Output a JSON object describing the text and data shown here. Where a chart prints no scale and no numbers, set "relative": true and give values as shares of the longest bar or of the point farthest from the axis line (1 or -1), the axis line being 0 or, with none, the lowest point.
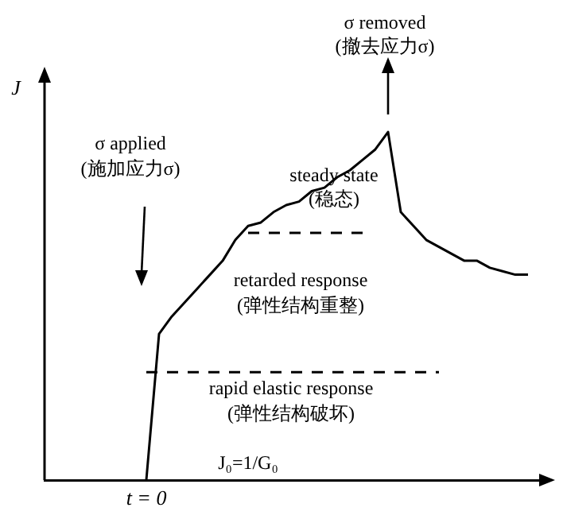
{
  "chart_data": {
    "type": "line",
    "relative": true,
    "ylabel": "J",
    "marker": "none",
    "grid": false,
    "legend": false,
    "categories": [
      null,
      null,
      null,
      null,
      null,
      null,
      null,
      null,
      null,
      null,
      null,
      null,
      null,
      null,
      null,
      null,
      null,
      null,
      null,
      null,
      null,
      null,
      null,
      null,
      null,
      null,
      null,
      null,
      null,
      null,
      null,
      null,
      null,
      null,
      null,
      null,
      null,
      null,
      null,
      null
    ],
    "series": [
      {
        "color": "#000000",
        "line_style": "solid",
        "values": [
          null,
          null,
          null,
          null,
          null,
          null,
          null,
          null,
          0,
          0.42,
          0.47,
          0.51,
          0.55,
          0.59,
          0.63,
          0.69,
          0.73,
          0.74,
          0.77,
          0.79,
          0.8,
          0.83,
          0.84,
          0.87,
          0.89,
          0.92,
          0.95,
          1,
          0.77,
          0.73,
          0.69,
          0.67,
          0.65,
          0.63,
          0.63,
          0.61,
          0.6,
          0.59,
          0.59,
          null
        ]
      },
      {
        "color": "#000000",
        "line_style": "dashed",
        "values": [
          null,
          null,
          null,
          null,
          null,
          null,
          null,
          null,
          0.31,
          0.31,
          0.31,
          0.31,
          0.31,
          0.31,
          0.31,
          0.31,
          0.31,
          0.31,
          0.31,
          0.31,
          0.31,
          0.31,
          0.31,
          0.31,
          0.31,
          0.31,
          0.31,
          0.31,
          0.31,
          0.31,
          0.31,
          0.31,
          null,
          null,
          null,
          null,
          null,
          null,
          null,
          null
        ]
      },
      {
        "color": "#000000",
        "line_style": "dashed",
        "values": [
          null,
          null,
          null,
          null,
          null,
          null,
          null,
          null,
          null,
          null,
          null,
          null,
          null,
          null,
          null,
          null,
          0.71,
          0.71,
          0.71,
          0.71,
          0.71,
          0.71,
          0.71,
          0.71,
          0.71,
          0.71,
          null,
          null,
          null,
          null,
          null,
          null,
          null,
          null,
          null,
          null,
          null,
          null,
          null,
          null
        ]
      }
    ],
    "annotations": [
      "σ removed\n(撤去应力σ)",
      "σ applied\n(施加应力σ)",
      "steady state\n(稳态)",
      "retarded response\n(弹性结构重整)",
      "rapid elastic response\n(弹性结构破坏)",
      "J₀=1/G₀",
      "t = 0"
    ]
  }
}
